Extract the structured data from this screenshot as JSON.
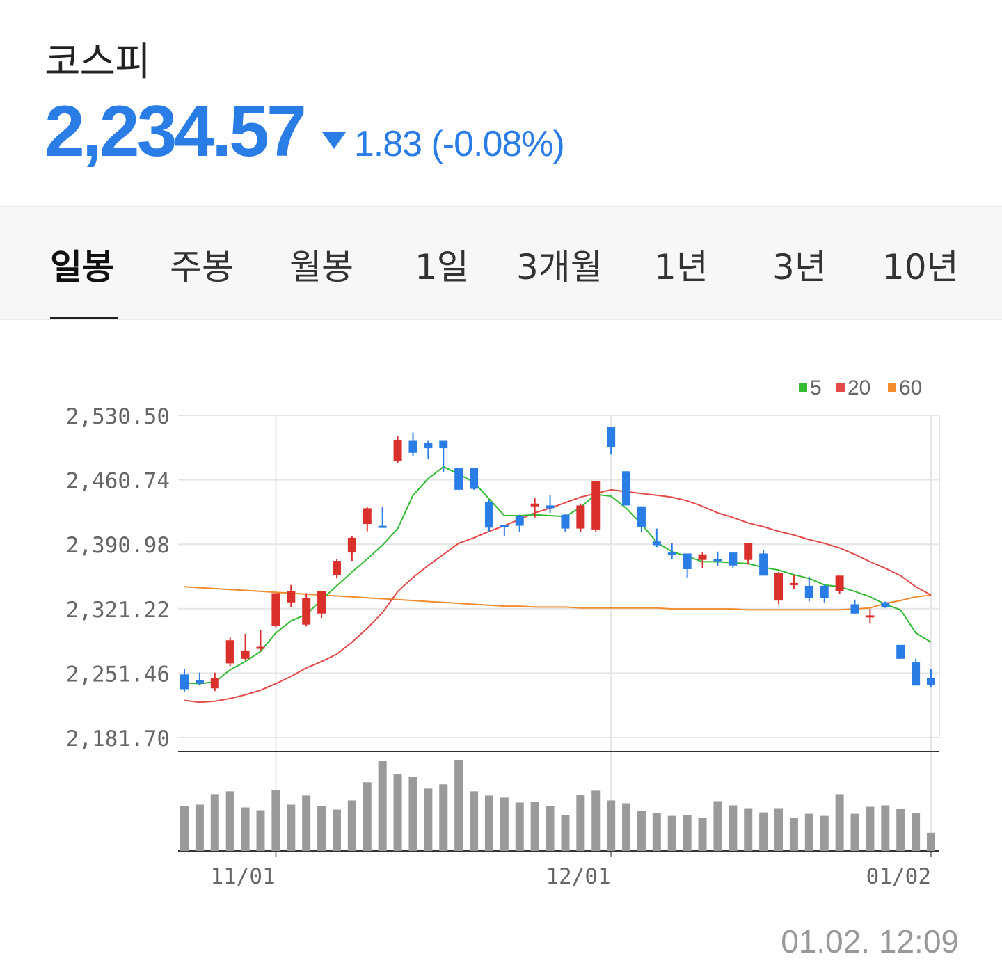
{
  "header": {
    "index_name": "코스피",
    "price": "2,234.57",
    "direction": "down",
    "change": "1.83 (-0.08%)",
    "color_down": "#2b7de6"
  },
  "tabs": [
    {
      "label": "일봉",
      "active": true
    },
    {
      "label": "주봉"
    },
    {
      "label": "월봉"
    },
    {
      "label": "1일"
    },
    {
      "label": "3개월"
    },
    {
      "label": "1년"
    },
    {
      "label": "3년"
    },
    {
      "label": "10년"
    }
  ],
  "chart_data": {
    "type": "candlestick",
    "y_ticks": [
      "2,530.50",
      "2,460.74",
      "2,390.98",
      "2,321.22",
      "2,251.46",
      "2,181.70"
    ],
    "ylim": [
      2181.7,
      2530.5
    ],
    "x_ticks": [
      "11/01",
      "12/01",
      "01/02"
    ],
    "grid": true,
    "legend_position": "top-right",
    "legend": [
      {
        "label": "5",
        "color": "#33bb33"
      },
      {
        "label": "20",
        "color": "#e34a4a"
      },
      {
        "label": "60",
        "color": "#f08c2e"
      }
    ],
    "up_color": "#d9302c",
    "down_color": "#2b7de6",
    "candles": [
      [
        2250,
        2234,
        2256,
        2231
      ],
      [
        2244,
        2240,
        2252,
        2238
      ],
      [
        2235,
        2246,
        2252,
        2232
      ],
      [
        2262,
        2287,
        2290,
        2259
      ],
      [
        2267,
        2276,
        2294,
        2265
      ],
      [
        2279,
        2280,
        2298,
        2276
      ],
      [
        2303,
        2338,
        2338,
        2301
      ],
      [
        2328,
        2340,
        2347,
        2323
      ],
      [
        2304,
        2333,
        2338,
        2302
      ],
      [
        2316,
        2340,
        2340,
        2311
      ],
      [
        2358,
        2373,
        2375,
        2354
      ],
      [
        2382,
        2398,
        2400,
        2373
      ],
      [
        2413,
        2430,
        2431,
        2405
      ],
      [
        2411,
        2410,
        2431,
        2409
      ],
      [
        2481,
        2504,
        2508,
        2479
      ],
      [
        2503,
        2490,
        2512,
        2486
      ],
      [
        2501,
        2495,
        2503,
        2483
      ],
      [
        2503,
        2495,
        2503,
        2469
      ],
      [
        2474,
        2450,
        2474,
        2450
      ],
      [
        2474,
        2451,
        2474,
        2450
      ],
      [
        2437,
        2409,
        2439,
        2405
      ],
      [
        2412,
        2411,
        2411,
        2400
      ],
      [
        2422,
        2411,
        2423,
        2404
      ],
      [
        2432,
        2435,
        2441,
        2420
      ],
      [
        2433,
        2430,
        2444,
        2425
      ],
      [
        2423,
        2408,
        2424,
        2404
      ],
      [
        2408,
        2433,
        2435,
        2404
      ],
      [
        2407,
        2459,
        2459,
        2404
      ],
      [
        2518,
        2496,
        2518,
        2488
      ],
      [
        2470,
        2433,
        2470,
        2433
      ],
      [
        2432,
        2410,
        2432,
        2404
      ],
      [
        2394,
        2390,
        2408,
        2388
      ],
      [
        2382,
        2379,
        2392,
        2375
      ],
      [
        2381,
        2364,
        2381,
        2355
      ],
      [
        2374,
        2380,
        2382,
        2365
      ],
      [
        2375,
        2373,
        2383,
        2367
      ],
      [
        2382,
        2368,
        2382,
        2365
      ],
      [
        2374,
        2392,
        2392,
        2369
      ],
      [
        2381,
        2357,
        2385,
        2357
      ],
      [
        2330,
        2360,
        2361,
        2326
      ],
      [
        2347,
        2349,
        2358,
        2343
      ],
      [
        2346,
        2333,
        2356,
        2329
      ],
      [
        2346,
        2333,
        2348,
        2328
      ],
      [
        2340,
        2357,
        2357,
        2337
      ],
      [
        2326,
        2316,
        2331,
        2315
      ],
      [
        2314,
        2314,
        2321,
        2305
      ],
      [
        2328,
        2323,
        2329,
        2322
      ],
      [
        2282,
        2267,
        2282,
        2267
      ],
      [
        2263,
        2238,
        2267,
        2238
      ],
      [
        2246,
        2239,
        2256,
        2236
      ]
    ],
    "ma5": [
      2241,
      2240,
      2242,
      2255,
      2264,
      2275,
      2295,
      2308,
      2315,
      2331,
      2346,
      2361,
      2375,
      2390,
      2408,
      2444,
      2462,
      2475,
      2467,
      2458,
      2440,
      2422,
      2422,
      2423,
      2422,
      2421,
      2431,
      2445,
      2443,
      2430,
      2413,
      2393,
      2383,
      2378,
      2372,
      2372,
      2371,
      2370,
      2366,
      2363,
      2358,
      2354,
      2347,
      2345,
      2340,
      2334,
      2326,
      2320,
      2295,
      2285
    ],
    "ma20": [
      2222,
      2220,
      2221,
      2224,
      2228,
      2233,
      2240,
      2248,
      2257,
      2264,
      2272,
      2285,
      2300,
      2317,
      2340,
      2355,
      2368,
      2380,
      2392,
      2398,
      2405,
      2411,
      2418,
      2425,
      2430,
      2436,
      2442,
      2446,
      2450,
      2448,
      2446,
      2444,
      2442,
      2438,
      2432,
      2425,
      2420,
      2414,
      2410,
      2405,
      2401,
      2396,
      2392,
      2387,
      2380,
      2372,
      2365,
      2357,
      2345,
      2336
    ],
    "ma60": [
      2345,
      2344,
      2343,
      2342,
      2341,
      2340,
      2339,
      2338,
      2337,
      2336,
      2335,
      2334,
      2333,
      2332,
      2331,
      2330,
      2329,
      2328,
      2327,
      2326,
      2325,
      2324,
      2324,
      2323,
      2323,
      2323,
      2322,
      2322,
      2322,
      2322,
      2322,
      2322,
      2321,
      2321,
      2321,
      2321,
      2321,
      2320,
      2320,
      2320,
      2320,
      2320,
      2320,
      2320,
      2321,
      2322,
      2327,
      2330,
      2334,
      2336
    ],
    "volume": [
      64,
      66,
      81,
      85,
      62,
      58,
      87,
      66,
      79,
      64,
      59,
      72,
      98,
      128,
      110,
      106,
      89,
      95,
      130,
      85,
      79,
      76,
      69,
      70,
      64,
      51,
      80,
      86,
      72,
      68,
      57,
      54,
      50,
      51,
      47,
      71,
      65,
      61,
      55,
      61,
      47,
      53,
      50,
      81,
      53,
      63,
      65,
      60,
      54,
      26
    ]
  },
  "timestamp": "01.02. 12:09"
}
